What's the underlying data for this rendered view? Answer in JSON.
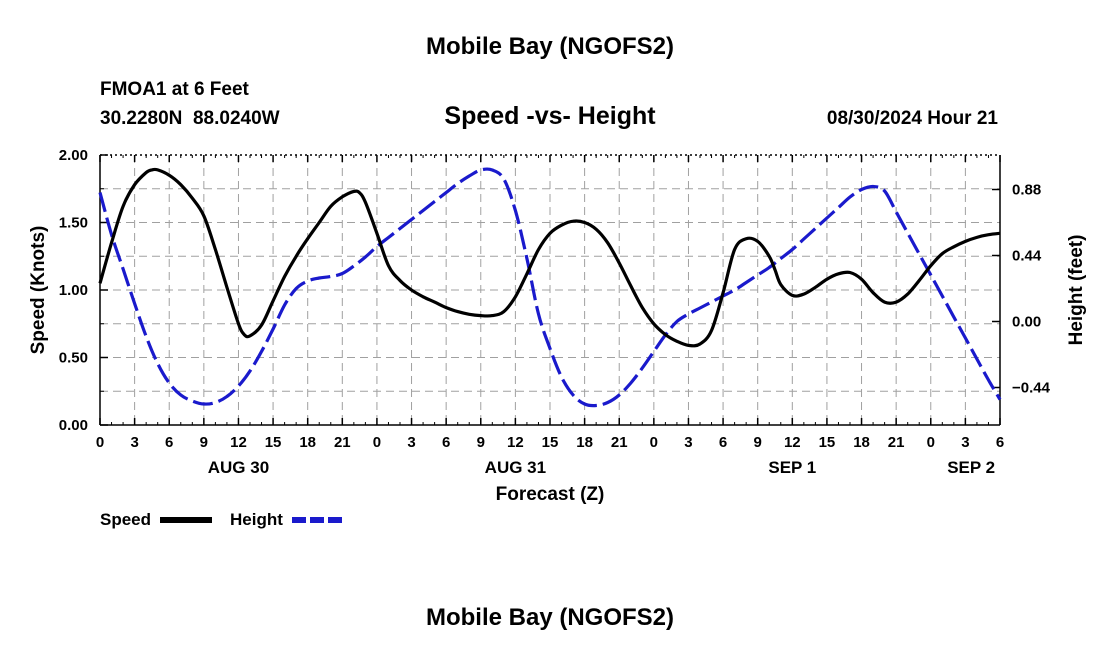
{
  "header": {
    "main_title": "Mobile Bay (NGOFS2)",
    "station": "FMOA1 at 6 Feet",
    "coords": "30.2280N  88.0240W",
    "subtitle": "Speed -vs- Height",
    "datetime": "08/30/2024 Hour 21",
    "footer_title": "Mobile Bay (NGOFS2)"
  },
  "legend": {
    "speed_label": "Speed",
    "height_label": "Height"
  },
  "chart_data": {
    "type": "line",
    "title": "Speed -vs- Height",
    "xlabel": "Forecast (Z)",
    "ylabel": "Speed (Knots)",
    "y2label": "Height (feet)",
    "xlim": [
      0,
      78
    ],
    "ylim": [
      0,
      2.0
    ],
    "y2lim": [
      -0.69,
      1.11
    ],
    "x_ticks": [
      0,
      3,
      6,
      9,
      12,
      15,
      18,
      21,
      24,
      27,
      30,
      33,
      36,
      39,
      42,
      45,
      48,
      51,
      54,
      57,
      60,
      63,
      66,
      69,
      72,
      75,
      78
    ],
    "x_tick_labels": [
      "0",
      "3",
      "6",
      "9",
      "12",
      "15",
      "18",
      "21",
      "0",
      "3",
      "6",
      "9",
      "12",
      "15",
      "18",
      "21",
      "0",
      "3",
      "6",
      "9",
      "12",
      "15",
      "18",
      "21",
      "0",
      "3",
      "6"
    ],
    "day_labels": [
      {
        "label": "AUG 30",
        "x": 12
      },
      {
        "label": "AUG 31",
        "x": 36
      },
      {
        "label": "SEP 1",
        "x": 60
      },
      {
        "label": "SEP 2",
        "x": 75.5
      }
    ],
    "y_ticks": [
      0.0,
      0.5,
      1.0,
      1.5,
      2.0
    ],
    "y_tick_labels": [
      "0.00",
      "0.50",
      "1.00",
      "1.50",
      "2.00"
    ],
    "y2_ticks": [
      -0.44,
      0.0,
      0.44,
      0.88
    ],
    "y2_tick_labels": [
      "−0.44",
      "0.00",
      "0.44",
      "0.88"
    ],
    "series": [
      {
        "name": "Speed",
        "axis": "left",
        "color": "#000000",
        "dash": "solid",
        "x": [
          0,
          1,
          2,
          3,
          4,
          4.5,
          5,
          6,
          7,
          8,
          9,
          10,
          11,
          12,
          12.5,
          13,
          14,
          15,
          16,
          17,
          18,
          19,
          20,
          21,
          22,
          22.5,
          23,
          24,
          25,
          26,
          27,
          28,
          29,
          30,
          31,
          32,
          33,
          34,
          35,
          36,
          37,
          38,
          39,
          40,
          41,
          42,
          43,
          44,
          45,
          46,
          47,
          48,
          49,
          50,
          51,
          52,
          53,
          54,
          55,
          56,
          57,
          58,
          58.5,
          59,
          60,
          61,
          62,
          63,
          64,
          65,
          66,
          67,
          68,
          69,
          70,
          71,
          72,
          73,
          74,
          75,
          76,
          77,
          78
        ],
        "values": [
          1.05,
          1.35,
          1.62,
          1.78,
          1.87,
          1.89,
          1.89,
          1.85,
          1.78,
          1.68,
          1.55,
          1.3,
          1.02,
          0.75,
          0.67,
          0.66,
          0.74,
          0.92,
          1.1,
          1.25,
          1.38,
          1.5,
          1.62,
          1.69,
          1.73,
          1.72,
          1.65,
          1.42,
          1.18,
          1.07,
          1.0,
          0.95,
          0.91,
          0.87,
          0.84,
          0.82,
          0.81,
          0.81,
          0.84,
          0.95,
          1.12,
          1.3,
          1.42,
          1.48,
          1.51,
          1.5,
          1.45,
          1.35,
          1.2,
          1.03,
          0.87,
          0.75,
          0.67,
          0.62,
          0.59,
          0.6,
          0.7,
          0.98,
          1.3,
          1.38,
          1.36,
          1.25,
          1.15,
          1.04,
          0.96,
          0.97,
          1.02,
          1.08,
          1.12,
          1.13,
          1.08,
          0.98,
          0.91,
          0.91,
          0.97,
          1.07,
          1.18,
          1.27,
          1.32,
          1.36,
          1.39,
          1.41,
          1.42
        ]
      },
      {
        "name": "Height",
        "axis": "right",
        "color": "#1a1acc",
        "dash": "dashed",
        "x": [
          0,
          1,
          2,
          3,
          4,
          5,
          6,
          7,
          8,
          9,
          10,
          11,
          12,
          13,
          14,
          15,
          16,
          17,
          18,
          19,
          20,
          21,
          22,
          23,
          24,
          25,
          26,
          27,
          28,
          29,
          30,
          31,
          32,
          33,
          34,
          35,
          36,
          37,
          38,
          39,
          40,
          41,
          42,
          43,
          44,
          45,
          46,
          47,
          48,
          49,
          50,
          51,
          52,
          53,
          54,
          55,
          56,
          57,
          58,
          59,
          60,
          61,
          62,
          63,
          64,
          65,
          66,
          67,
          68,
          69,
          70,
          71,
          72,
          73,
          74,
          75,
          76,
          77,
          78
        ],
        "values": [
          0.86,
          0.58,
          0.35,
          0.12,
          -0.1,
          -0.28,
          -0.41,
          -0.49,
          -0.53,
          -0.55,
          -0.54,
          -0.5,
          -0.43,
          -0.33,
          -0.2,
          -0.05,
          0.11,
          0.22,
          0.27,
          0.29,
          0.3,
          0.32,
          0.37,
          0.43,
          0.5,
          0.56,
          0.62,
          0.68,
          0.74,
          0.8,
          0.86,
          0.92,
          0.97,
          1.01,
          1.01,
          0.95,
          0.74,
          0.42,
          0.05,
          -0.18,
          -0.37,
          -0.49,
          -0.55,
          -0.56,
          -0.54,
          -0.49,
          -0.41,
          -0.31,
          -0.2,
          -0.09,
          0.0,
          0.05,
          0.09,
          0.13,
          0.17,
          0.21,
          0.26,
          0.31,
          0.36,
          0.42,
          0.48,
          0.55,
          0.62,
          0.69,
          0.76,
          0.83,
          0.88,
          0.9,
          0.87,
          0.73,
          0.59,
          0.45,
          0.31,
          0.17,
          0.03,
          -0.11,
          -0.25,
          -0.39,
          -0.52
        ]
      }
    ]
  }
}
